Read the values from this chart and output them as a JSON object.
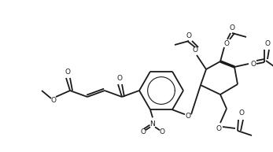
{
  "bg": "#ffffff",
  "lc": "#1a1a1a",
  "lw": 1.0,
  "fw": 3.47,
  "fh": 1.93,
  "dpi": 100,
  "xlim": [
    0,
    347
  ],
  "ylim": [
    0,
    193
  ]
}
